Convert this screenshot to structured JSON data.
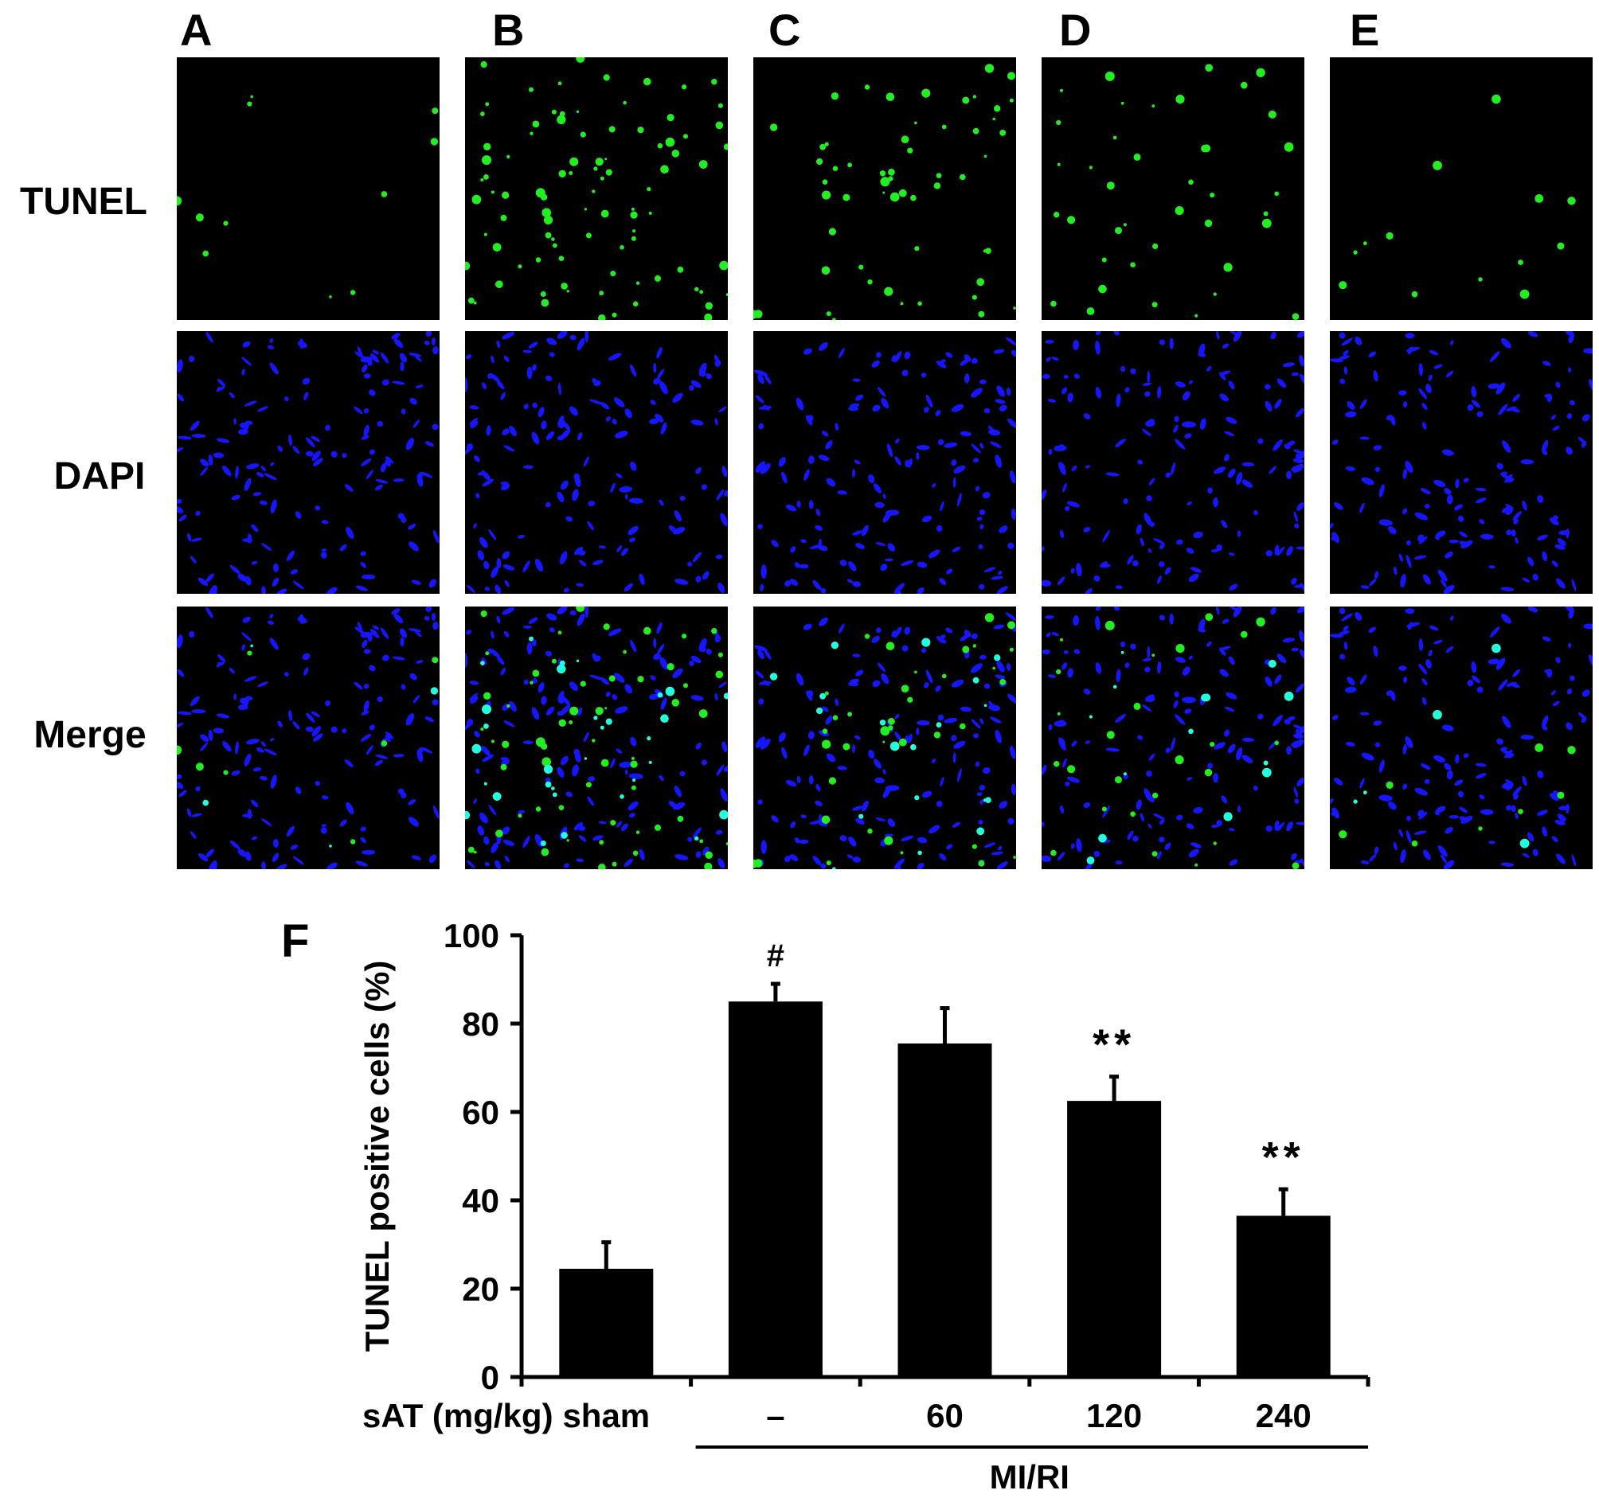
{
  "micrographs": {
    "column_letters": [
      "A",
      "B",
      "C",
      "D",
      "E"
    ],
    "row_labels": [
      "TUNEL",
      "DAPI",
      "Merge"
    ],
    "colors": {
      "tunel": "#22ee22",
      "dapi": "#1515ff",
      "merge_overlap": "#22ffdd",
      "background": "#000000"
    },
    "tunel_density": [
      0.05,
      0.42,
      0.26,
      0.18,
      0.06
    ]
  },
  "chart_data": {
    "type": "bar",
    "panel_letter": "F",
    "categories": [
      "sham",
      "–",
      "60",
      "120",
      "240"
    ],
    "values": [
      24.5,
      85,
      75.5,
      62.5,
      36.5
    ],
    "errors": [
      6,
      4,
      8,
      5.5,
      6
    ],
    "annotations": [
      "",
      "#",
      "",
      "**",
      "**"
    ],
    "xlabel": "sAT (mg/kg)",
    "ylabel": "TUNEL positive cells (%)",
    "group_label": "MI/RI",
    "ylim": [
      0,
      100
    ],
    "yticks": [
      0,
      20,
      40,
      60,
      80,
      100
    ],
    "grid": false,
    "bar_color": "#000000"
  }
}
